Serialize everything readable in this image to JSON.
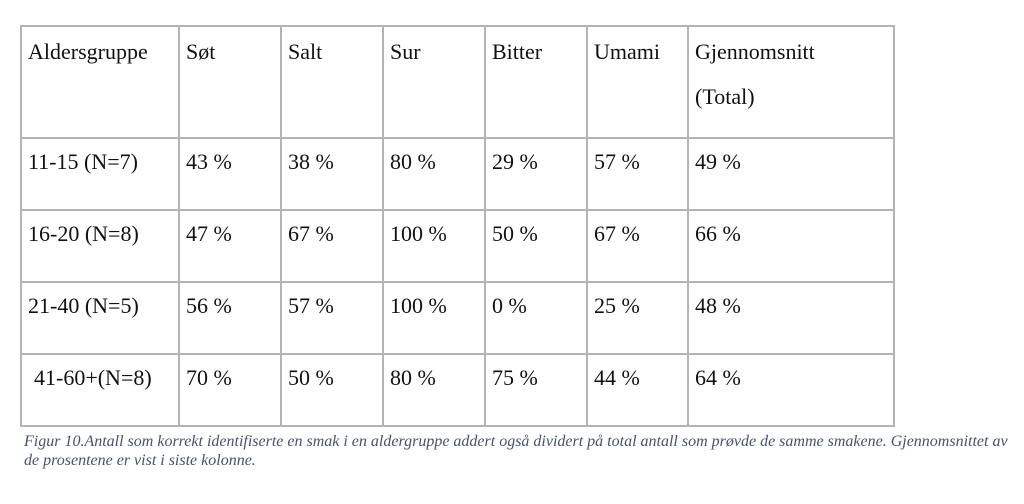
{
  "table": {
    "header": [
      "Aldersgruppe",
      "Søt",
      "Salt",
      "Sur",
      "Bitter",
      "Umami",
      "Gjennomsnitt (Total)"
    ],
    "rows": [
      [
        "11-15 (N=7)",
        "43 %",
        "38 %",
        "80 %",
        "29 %",
        "57 %",
        "49 %"
      ],
      [
        "16-20 (N=8)",
        "47 %",
        "67 %",
        "100 %",
        "50 %",
        "67 %",
        "66 %"
      ],
      [
        "21-40 (N=5)",
        "56 %",
        "57 %",
        "100 %",
        "0 %",
        "25 %",
        "48 %"
      ],
      [
        "41-60+(N=8)",
        "70 %",
        "50 %",
        "80 %",
        "75 %",
        "44 %",
        "64 %"
      ]
    ]
  },
  "caption": "Figur 10.Antall som korrekt identifiserte en smak i en aldergruppe addert også dividert på total antall som prøvde de samme smakene. Gjennomsnittet av de prosentene er vist i siste kolonne."
}
